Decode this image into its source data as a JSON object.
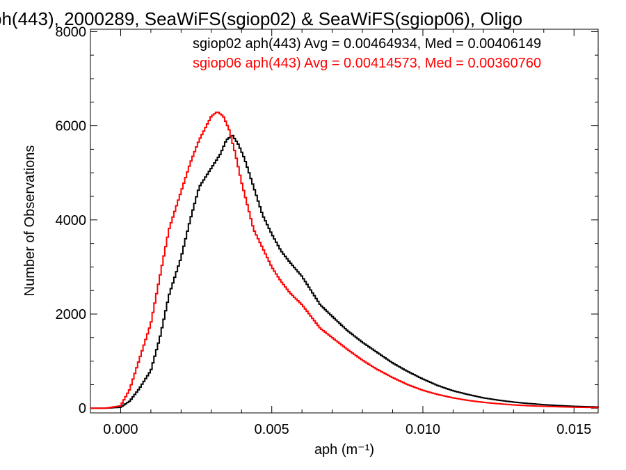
{
  "chart_data": {
    "type": "line",
    "title": "ph(443), 2000289, SeaWiFS(sgiop02) & SeaWiFS(sgiop06), Oligo",
    "xlabel": "aph (m⁻¹)",
    "ylabel": "Number of Observations",
    "xlim": [
      -0.001,
      0.0158
    ],
    "ylim": [
      -100,
      8050
    ],
    "x_ticks": [
      0.0,
      0.005,
      0.01,
      0.015
    ],
    "x_tick_labels": [
      "0.000",
      "0.005",
      "0.010",
      "0.015"
    ],
    "y_ticks": [
      0,
      2000,
      4000,
      6000,
      8000
    ],
    "y_tick_labels": [
      "0",
      "2000",
      "4000",
      "6000",
      "8000"
    ],
    "grid": false,
    "legend_position": "top-right",
    "series": [
      {
        "name": "sgiop02 aph(443) Avg = 0.00464934, Med = 0.00406149",
        "color": "#000000",
        "step": true,
        "x": [
          -0.001,
          -0.0005,
          0.0,
          0.0003,
          0.0006,
          0.001,
          0.0013,
          0.0016,
          0.002,
          0.0023,
          0.0026,
          0.003,
          0.0033,
          0.0035,
          0.0037,
          0.0039,
          0.0041,
          0.0043,
          0.0045,
          0.0047,
          0.005,
          0.0053,
          0.0056,
          0.006,
          0.0063,
          0.0066,
          0.007,
          0.0075,
          0.008,
          0.0085,
          0.009,
          0.0095,
          0.01,
          0.0105,
          0.011,
          0.0115,
          0.012,
          0.0125,
          0.013,
          0.0135,
          0.014,
          0.0145,
          0.015,
          0.0155,
          0.0158
        ],
        "y": [
          0,
          0,
          20,
          150,
          400,
          800,
          1500,
          2400,
          3200,
          4000,
          4700,
          5100,
          5400,
          5700,
          5800,
          5600,
          5300,
          4900,
          4500,
          4100,
          3700,
          3350,
          3100,
          2800,
          2500,
          2200,
          1950,
          1650,
          1400,
          1180,
          960,
          780,
          620,
          480,
          370,
          290,
          220,
          170,
          130,
          100,
          75,
          55,
          40,
          30,
          25
        ]
      },
      {
        "name": "sgiop06 aph(443) Avg = 0.00414573, Med = 0.00360760",
        "color": "#ff0000",
        "step": true,
        "x": [
          -0.001,
          -0.0005,
          0.0,
          0.0003,
          0.0006,
          0.001,
          0.0013,
          0.0016,
          0.002,
          0.0023,
          0.0026,
          0.003,
          0.0032,
          0.0034,
          0.0036,
          0.0038,
          0.004,
          0.0042,
          0.0044,
          0.0047,
          0.005,
          0.0053,
          0.0056,
          0.006,
          0.0063,
          0.0066,
          0.007,
          0.0075,
          0.008,
          0.0085,
          0.009,
          0.0095,
          0.01,
          0.0105,
          0.011,
          0.0115,
          0.012,
          0.0125,
          0.013,
          0.0135,
          0.014,
          0.0145,
          0.015,
          0.0155,
          0.0158
        ],
        "y": [
          0,
          0,
          50,
          400,
          1000,
          1800,
          2800,
          3800,
          4600,
          5200,
          5700,
          6200,
          6300,
          6200,
          5900,
          5400,
          4800,
          4300,
          3800,
          3400,
          3000,
          2700,
          2450,
          2200,
          1950,
          1700,
          1500,
          1250,
          1020,
          820,
          650,
          500,
          380,
          290,
          220,
          165,
          125,
          95,
          70,
          52,
          40,
          30,
          22,
          16,
          12
        ]
      }
    ]
  }
}
